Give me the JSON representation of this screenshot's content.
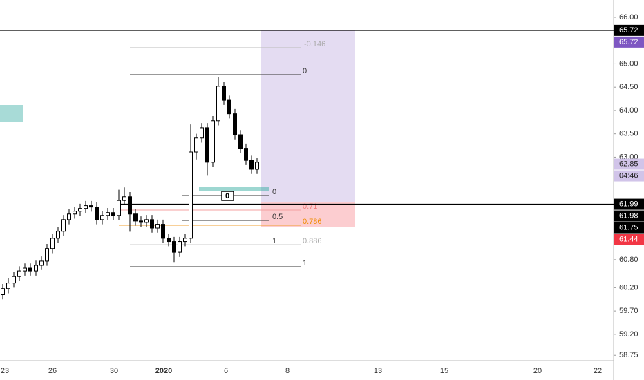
{
  "chart_data": {
    "type": "candlestick",
    "x_labels": [
      "23",
      "26",
      "30",
      "2020",
      "6",
      "8",
      "13",
      "15",
      "20",
      "22"
    ],
    "open": [
      60.05,
      60.18,
      60.3,
      60.44,
      60.56,
      60.62,
      60.56,
      60.68,
      60.77,
      61.04,
      61.26,
      61.41,
      61.66,
      61.78,
      61.84,
      61.9,
      61.96,
      61.93,
      61.66,
      61.75,
      61.81,
      61.75,
      62.07,
      62.15,
      61.78,
      61.63,
      61.6,
      61.66,
      61.48,
      61.56,
      61.26,
      61.19,
      60.96,
      61.19,
      61.26,
      63.11,
      63.41,
      63.63,
      62.89,
      63.78,
      64.52,
      64.22,
      63.93,
      63.48,
      63.19,
      62.93,
      62.74
    ],
    "high": [
      60.28,
      60.4,
      60.54,
      60.66,
      60.72,
      60.72,
      60.78,
      60.87,
      61.14,
      61.36,
      61.51,
      61.76,
      61.88,
      61.94,
      62.0,
      62.06,
      62.06,
      62.03,
      61.85,
      61.91,
      61.91,
      62.3,
      62.35,
      62.25,
      61.88,
      61.73,
      61.76,
      61.76,
      61.66,
      61.66,
      61.36,
      61.29,
      61.29,
      61.36,
      63.7,
      63.5,
      63.73,
      63.73,
      63.88,
      64.72,
      64.62,
      64.32,
      64.03,
      63.58,
      63.29,
      63.03,
      62.99
    ],
    "low": [
      59.95,
      60.08,
      60.2,
      60.34,
      60.46,
      60.46,
      60.46,
      60.58,
      60.67,
      60.94,
      61.16,
      61.31,
      61.56,
      61.68,
      61.74,
      61.8,
      61.83,
      61.56,
      61.56,
      61.65,
      61.65,
      61.65,
      61.97,
      61.4,
      61.53,
      61.5,
      61.5,
      61.38,
      61.38,
      61.16,
      61.09,
      60.75,
      60.86,
      61.09,
      61.16,
      62.95,
      63.31,
      62.6,
      62.79,
      63.68,
      64.12,
      63.83,
      63.38,
      63.09,
      62.83,
      62.64,
      62.64
    ],
    "close": [
      60.18,
      60.3,
      60.44,
      60.56,
      60.62,
      60.56,
      60.68,
      60.77,
      61.04,
      61.26,
      61.41,
      61.66,
      61.78,
      61.84,
      61.9,
      61.96,
      61.93,
      61.66,
      61.75,
      61.81,
      61.75,
      62.07,
      62.15,
      61.78,
      61.63,
      61.6,
      61.66,
      61.48,
      61.56,
      61.26,
      61.19,
      60.96,
      61.19,
      61.26,
      63.11,
      63.41,
      63.63,
      62.89,
      63.78,
      64.52,
      64.22,
      63.93,
      63.48,
      63.19,
      62.93,
      62.74,
      62.89
    ],
    "up_color": "#ffffff",
    "down_color": "#000000",
    "ylim": [
      58.22,
      66.37
    ],
    "yticks": [
      {
        "value": 66,
        "label": "66.00"
      },
      {
        "value": 65,
        "label": "65.00"
      },
      {
        "value": 64.5,
        "label": "64.50"
      },
      {
        "value": 64,
        "label": "64.00"
      },
      {
        "value": 63.5,
        "label": "63.50"
      },
      {
        "value": 63,
        "label": "63.00"
      },
      {
        "value": 60.8,
        "label": "60.80"
      },
      {
        "value": 60.2,
        "label": "60.20"
      },
      {
        "value": 59.7,
        "label": "59.70"
      },
      {
        "value": 59.2,
        "label": "59.20"
      },
      58.75
    ],
    "price_labels": [
      {
        "value": 65.72,
        "label": "65.72",
        "color": "#000000"
      },
      {
        "value": 65.72,
        "label": "65.72",
        "color": "#7e57c2"
      },
      {
        "value": 62.85,
        "label": "62.85",
        "color": "#d1c4e9",
        "countdown": "04:46"
      },
      {
        "value": 61.99,
        "label": "61.99",
        "color": "#000000"
      },
      {
        "value": 61.98,
        "label": "61.98",
        "color": "#000000"
      },
      {
        "value": 61.75,
        "label": "61.75",
        "color": "#000000"
      },
      {
        "value": 61.44,
        "label": "61.44",
        "color": "#f23645"
      }
    ],
    "annotations": [
      "-0.146",
      "0",
      "0",
      "0.71",
      "0.5",
      "0.786",
      "1",
      "0.886",
      "1",
      "0"
    ]
  }
}
